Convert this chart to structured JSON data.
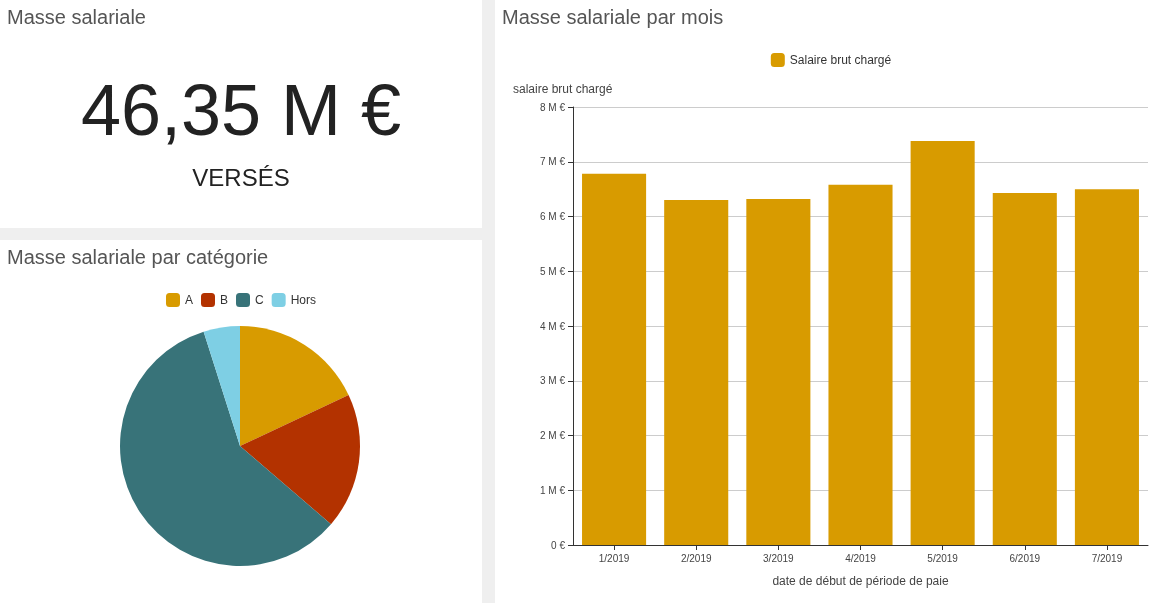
{
  "chart_data": [
    {
      "type": "other",
      "title": "Masse salariale",
      "annotations": [
        "46,35 M €",
        "VERSÉS"
      ]
    },
    {
      "type": "pie",
      "title": "Masse salariale par catégorie",
      "categories": [
        "A",
        "B",
        "C",
        "Hors"
      ],
      "values": [
        18,
        18.3,
        58.8,
        4.9
      ],
      "colors": [
        "#d89b00",
        "#b33200",
        "#387379",
        "#7ecfe4"
      ],
      "legend": "top"
    },
    {
      "type": "bar",
      "title": "Masse salariale par mois",
      "xlabel": "date de début de période de paie",
      "ylabel": "salaire brut chargé",
      "categories": [
        "1/2019",
        "2/2019",
        "3/2019",
        "4/2019",
        "5/2019",
        "6/2019",
        "7/2019"
      ],
      "series": [
        {
          "name": "Salaire brut chargé",
          "color": "#d89b00",
          "values": [
            6.78,
            6.3,
            6.32,
            6.58,
            7.38,
            6.43,
            6.5
          ]
        }
      ],
      "ylim": [
        0,
        8
      ],
      "yticks": [
        {
          "value": 0,
          "label": "0 €"
        },
        {
          "value": 1,
          "label": "1 M €"
        },
        {
          "value": 2,
          "label": "2 M €"
        },
        {
          "value": 3,
          "label": "3 M €"
        },
        {
          "value": 4,
          "label": "4 M €"
        },
        {
          "value": 5,
          "label": "5 M €"
        },
        {
          "value": 6,
          "label": "6 M €"
        },
        {
          "value": 7,
          "label": "7 M €"
        },
        {
          "value": 8,
          "label": "8 M €"
        }
      ],
      "grid": "y",
      "legend": "top"
    }
  ]
}
